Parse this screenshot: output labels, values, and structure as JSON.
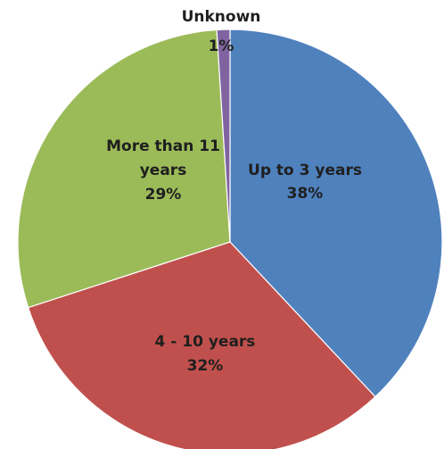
{
  "chart_data": {
    "type": "pie",
    "title": "",
    "legend": "none",
    "start_angle_deg": 0,
    "direction": "clockwise",
    "slices": [
      {
        "label": "Up to 3 years",
        "lines": [
          "Up to 3 years"
        ],
        "value": 38,
        "percent_label": "38%",
        "color": "#4f81bd"
      },
      {
        "label": "4 - 10 years",
        "lines": [
          "4 - 10 years"
        ],
        "value": 32,
        "percent_label": "32%",
        "color": "#c0504d"
      },
      {
        "label": "More than 11 years",
        "lines": [
          "More than 11",
          "years"
        ],
        "value": 29,
        "percent_label": "29%",
        "color": "#9bbb59"
      },
      {
        "label": "Unknown",
        "lines": [
          "Unknown"
        ],
        "value": 1,
        "percent_label": "1%",
        "color": "#8064a2"
      }
    ]
  }
}
